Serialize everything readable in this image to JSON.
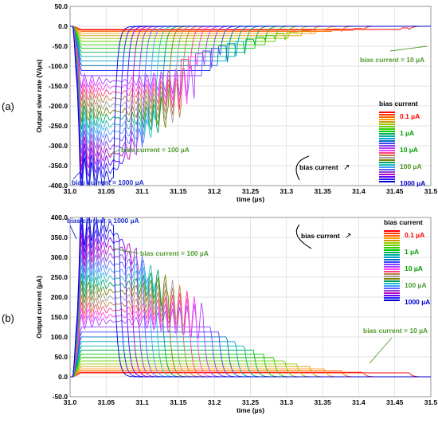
{
  "figure": {
    "panel_labels": [
      "(a)",
      "(b)"
    ]
  },
  "colors": {
    "grid": "#d9d9d9",
    "axis": "#000000",
    "low_bias": "#ff0000",
    "mid_bias": "#00a000",
    "high_bias": "#0000cc",
    "annotation_green": "#4f9a2e",
    "annotation_blue": "#1b2ecc"
  },
  "chart_data": [
    {
      "type": "line",
      "panel": "(a)",
      "xlabel": "time (µs)",
      "ylabel": "Output slew rate (V/µs)",
      "xlim": [
        31.0,
        31.5
      ],
      "ylim": [
        -400,
        50
      ],
      "x_ticks": [
        "31.0",
        "31.05",
        "31.1",
        "31.15",
        "31.2",
        "31.25",
        "31.3",
        "31.35",
        "31.4",
        "31.45",
        "31.5"
      ],
      "y_ticks": [
        "50.0",
        "0.0",
        "-50.0",
        "-100.0",
        "-150.0",
        "-200.0",
        "-250.0",
        "-300.0",
        "-350.0",
        "-400.0"
      ],
      "grid": true,
      "legend_title": "bias current",
      "legend_labels": [
        "0.1 µA",
        "1 µA",
        "10 µA",
        "100 µA",
        "1000 µA"
      ],
      "legend_placement": "right",
      "annotations": [
        "bias current = 10 µA",
        "bias current = 100 µA",
        "bias current = 1000 µA",
        "bias current"
      ],
      "series_summary": {
        "count": 30,
        "bias_range_uA": [
          0.1,
          1000
        ],
        "end_of_slew_time_us": [
          31.47,
          31.06
        ],
        "peak_value_V_per_us": [
          -8,
          -380
        ]
      }
    },
    {
      "type": "line",
      "panel": "(b)",
      "xlabel": "time (µs)",
      "ylabel": "Output current (µA)",
      "xlim": [
        31.0,
        31.5
      ],
      "ylim": [
        -50,
        400
      ],
      "x_ticks": [
        "31.0",
        "31.05",
        "31.1",
        "31.15",
        "31.2",
        "31.25",
        "31.3",
        "31.35",
        "31.4",
        "31.45",
        "31.5"
      ],
      "y_ticks": [
        "400.0",
        "350.0",
        "300.0",
        "250.0",
        "200.0",
        "150.0",
        "100.0",
        "50.0",
        "0.0",
        "-50.0"
      ],
      "grid": true,
      "legend_title": "bias current",
      "legend_labels": [
        "0.1 µA",
        "1 µA",
        "10 µA",
        "100 µA",
        "1000 µA"
      ],
      "legend_placement": "top-right",
      "annotations": [
        "bias current = 1000 µA",
        "bias current = 100 µA",
        "bias current = 10 µA",
        "bias current"
      ],
      "series_summary": {
        "count": 30,
        "bias_range_uA": [
          0.1,
          1000
        ],
        "end_of_slew_time_us": [
          31.47,
          31.06
        ],
        "peak_value_uA": [
          10,
          380
        ]
      }
    }
  ]
}
